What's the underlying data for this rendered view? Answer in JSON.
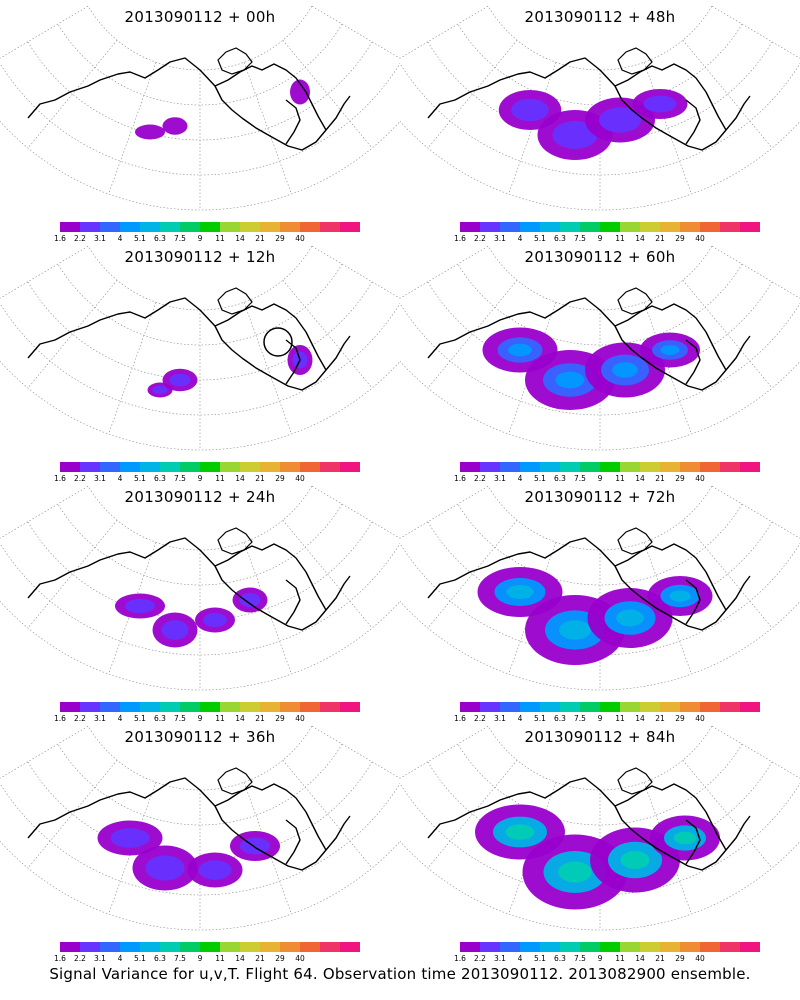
{
  "panels": [
    {
      "title": "2013090112 + 00h",
      "level": 0.05
    },
    {
      "title": "2013090112 + 48h",
      "level": 0.35
    },
    {
      "title": "2013090112 + 12h",
      "level": 0.12
    },
    {
      "title": "2013090112 + 60h",
      "level": 0.5
    },
    {
      "title": "2013090112 + 24h",
      "level": 0.2
    },
    {
      "title": "2013090112 + 72h",
      "level": 0.7
    },
    {
      "title": "2013090112 + 36h",
      "level": 0.3
    },
    {
      "title": "2013090112 + 84h",
      "level": 0.9
    }
  ],
  "colorbar": {
    "labels": [
      "1.6",
      "2.2",
      "3.1",
      "4",
      "5.1",
      "6.3",
      "7.5",
      "9",
      "11",
      "14",
      "21",
      "29",
      "40"
    ],
    "colors": [
      "#9900cc",
      "#6633ff",
      "#3366ff",
      "#0099ff",
      "#00b3e6",
      "#00ccb3",
      "#00cc66",
      "#00cc00",
      "#99d633",
      "#cccc33",
      "#e6b333",
      "#f08c33",
      "#f06633",
      "#f03366",
      "#f01480"
    ]
  },
  "caption": "Signal Variance for u,v,T. Flight 64. Observation time 2013090112. 2013082900 ensemble."
}
